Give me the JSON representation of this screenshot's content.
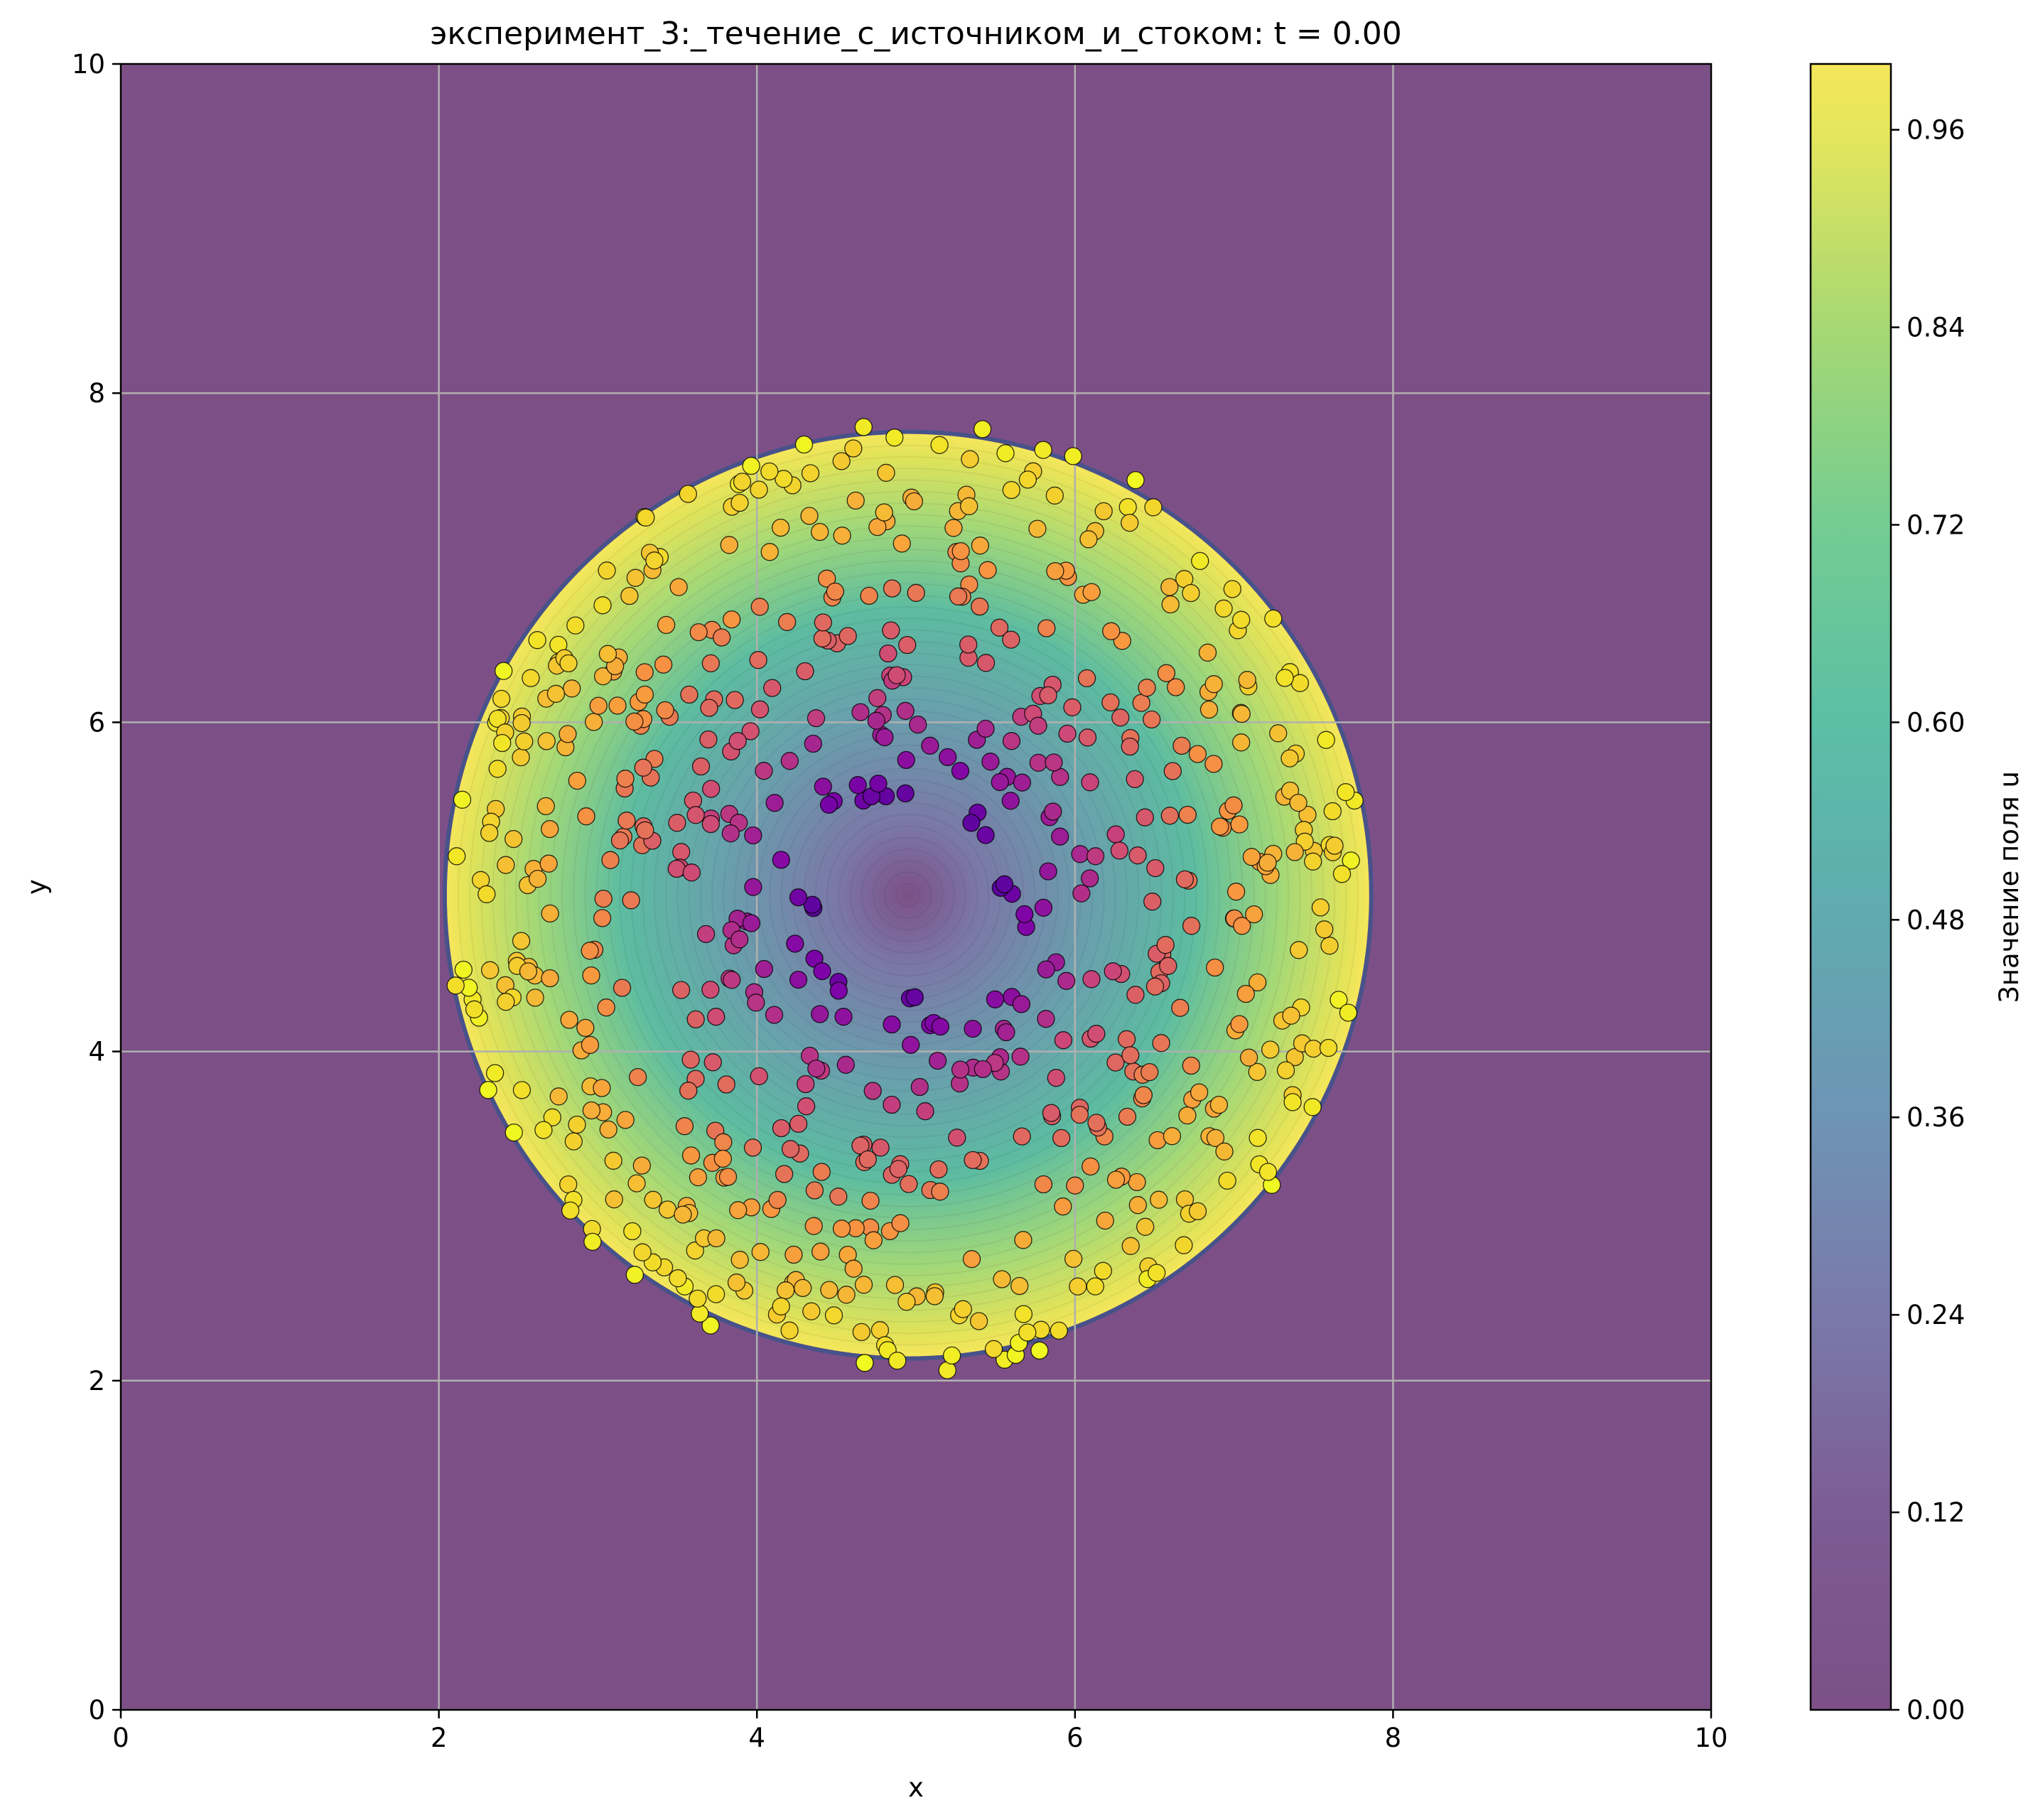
{
  "chart_data": {
    "type": "scatter",
    "title": "эксперимент_3:_течение_с_источником_и_стоком: t = 0.00",
    "xlabel": "x",
    "ylabel": "y",
    "xlim": [
      0,
      10
    ],
    "ylim": [
      0,
      10
    ],
    "x_ticks": [
      "0",
      "2",
      "4",
      "6",
      "8",
      "10"
    ],
    "y_ticks": [
      "0",
      "2",
      "4",
      "6",
      "8",
      "10"
    ],
    "grid": true,
    "background": {
      "type": "filled-contour",
      "field": "u",
      "shape": "disk",
      "center": [
        4.95,
        4.95
      ],
      "radius": 2.9,
      "value_at_center": 0.0,
      "value_at_edge": 1.0,
      "value_outside": 0.0,
      "colormap": "viridis",
      "alpha": 0.7
    },
    "points": {
      "count": 700,
      "region": "disk",
      "center": [
        4.95,
        4.95
      ],
      "radius": 2.9,
      "color_by": "u",
      "colormap": "plasma",
      "edgecolor": "#000000",
      "note": "each point coloured by its own u value, rising from the centre to the rim"
    },
    "colorbar": {
      "label": "Значение поля u",
      "vmin": 0.0,
      "vmax": 1.0,
      "ticks": [
        "0.00",
        "0.12",
        "0.24",
        "0.36",
        "0.48",
        "0.60",
        "0.72",
        "0.84",
        "0.96"
      ],
      "tick_values": [
        0.0,
        0.12,
        0.24,
        0.36,
        0.48,
        0.6,
        0.72,
        0.84,
        0.96
      ]
    }
  },
  "colors": {
    "outside": "#7c5087",
    "grid": "#b0b0b0",
    "frame": "#000000"
  }
}
